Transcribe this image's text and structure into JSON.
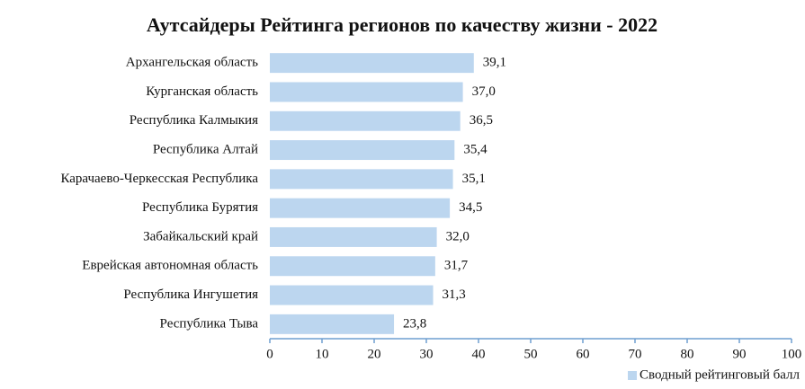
{
  "chart_data": {
    "type": "barh",
    "title": "Аутсайдеры Рейтинга регионов по качеству жизни - 2022",
    "categories": [
      "Архангельская область",
      "Курганская область",
      "Республика Калмыкия",
      "Республика Алтай",
      "Карачаево-Черкесская Республика",
      "Республика Бурятия",
      "Забайкальский край",
      "Еврейская автономная область",
      "Республика Ингушетия",
      "Республика Тыва"
    ],
    "series": [
      {
        "name": "Сводный рейтинговый балл",
        "color": "#bcd6ef",
        "values": [
          39.1,
          37.0,
          36.5,
          35.4,
          35.1,
          34.5,
          32.0,
          31.7,
          31.3,
          23.8
        ],
        "value_labels": [
          "39,1",
          "37,0",
          "36,5",
          "35,4",
          "35,1",
          "34,5",
          "32,0",
          "31,7",
          "31,3",
          "23,8"
        ]
      }
    ],
    "xlim": [
      0,
      100
    ],
    "xticks": [
      0,
      10,
      20,
      30,
      40,
      50,
      60,
      70,
      80,
      90,
      100
    ],
    "legend": "bottom-right"
  }
}
